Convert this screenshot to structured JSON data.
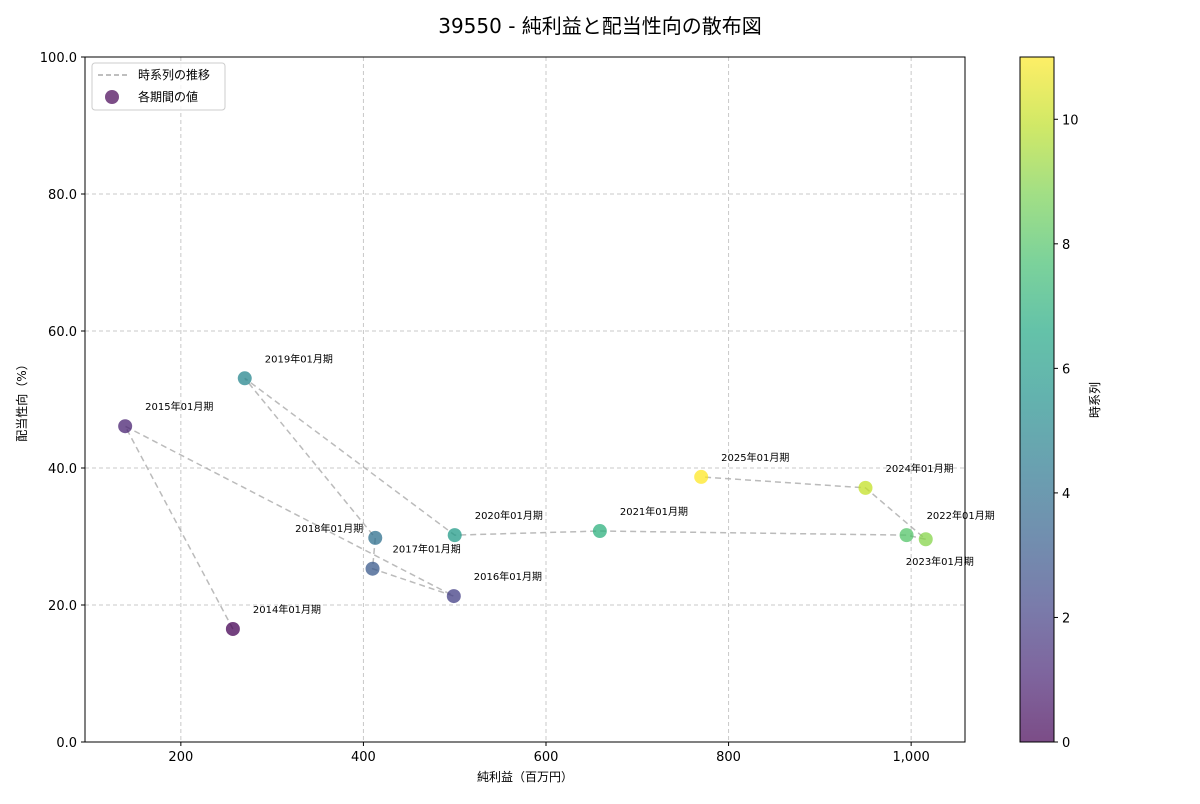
{
  "chart_data": {
    "type": "scatter",
    "title": "39550 - 純利益と配当性向の散布図",
    "xlabel": "純利益（百万円）",
    "ylabel": "配当性向（%）",
    "xlim": [
      95,
      1059
    ],
    "ylim": [
      0,
      100
    ],
    "xticks": [
      200,
      400,
      600,
      800,
      1000
    ],
    "xtick_labels": [
      "200",
      "400",
      "600",
      "800",
      "1,000"
    ],
    "yticks": [
      0,
      20,
      40,
      60,
      80,
      100
    ],
    "ytick_labels": [
      "0.0",
      "20.0",
      "40.0",
      "60.0",
      "80.0",
      "100.0"
    ],
    "grid": true,
    "legend": {
      "placement": "top-left",
      "entries": [
        "時系列の推移",
        "各期間の値"
      ]
    },
    "colorbar": {
      "label": "時系列",
      "range": [
        0,
        11
      ],
      "ticks": [
        0,
        2,
        4,
        6,
        8,
        10
      ],
      "tick_labels": [
        "0",
        "2",
        "4",
        "6",
        "8",
        "10"
      ],
      "colormap": "viridis"
    },
    "points": [
      {
        "label": "2014年01月期",
        "x": 257,
        "y": 16.5,
        "t": 0
      },
      {
        "label": "2015年01月期",
        "x": 139,
        "y": 46.1,
        "t": 1
      },
      {
        "label": "2016年01月期",
        "x": 499,
        "y": 21.3,
        "t": 2
      },
      {
        "label": "2017年01月期",
        "x": 410,
        "y": 25.3,
        "t": 3
      },
      {
        "label": "2018年01月期",
        "x": 413,
        "y": 29.8,
        "t": 4
      },
      {
        "label": "2019年01月期",
        "x": 270,
        "y": 53.1,
        "t": 5
      },
      {
        "label": "2020年01月期",
        "x": 500,
        "y": 30.2,
        "t": 6
      },
      {
        "label": "2021年01月期",
        "x": 659,
        "y": 30.8,
        "t": 7
      },
      {
        "label": "2022年01月期",
        "x": 995,
        "y": 30.2,
        "t": 8
      },
      {
        "label": "2023年01月期",
        "x": 1016,
        "y": 29.6,
        "t": 9
      },
      {
        "label": "2024年01月期",
        "x": 950,
        "y": 37.1,
        "t": 10
      },
      {
        "label": "2025年01月期",
        "x": 770,
        "y": 38.7,
        "t": 11
      }
    ]
  }
}
